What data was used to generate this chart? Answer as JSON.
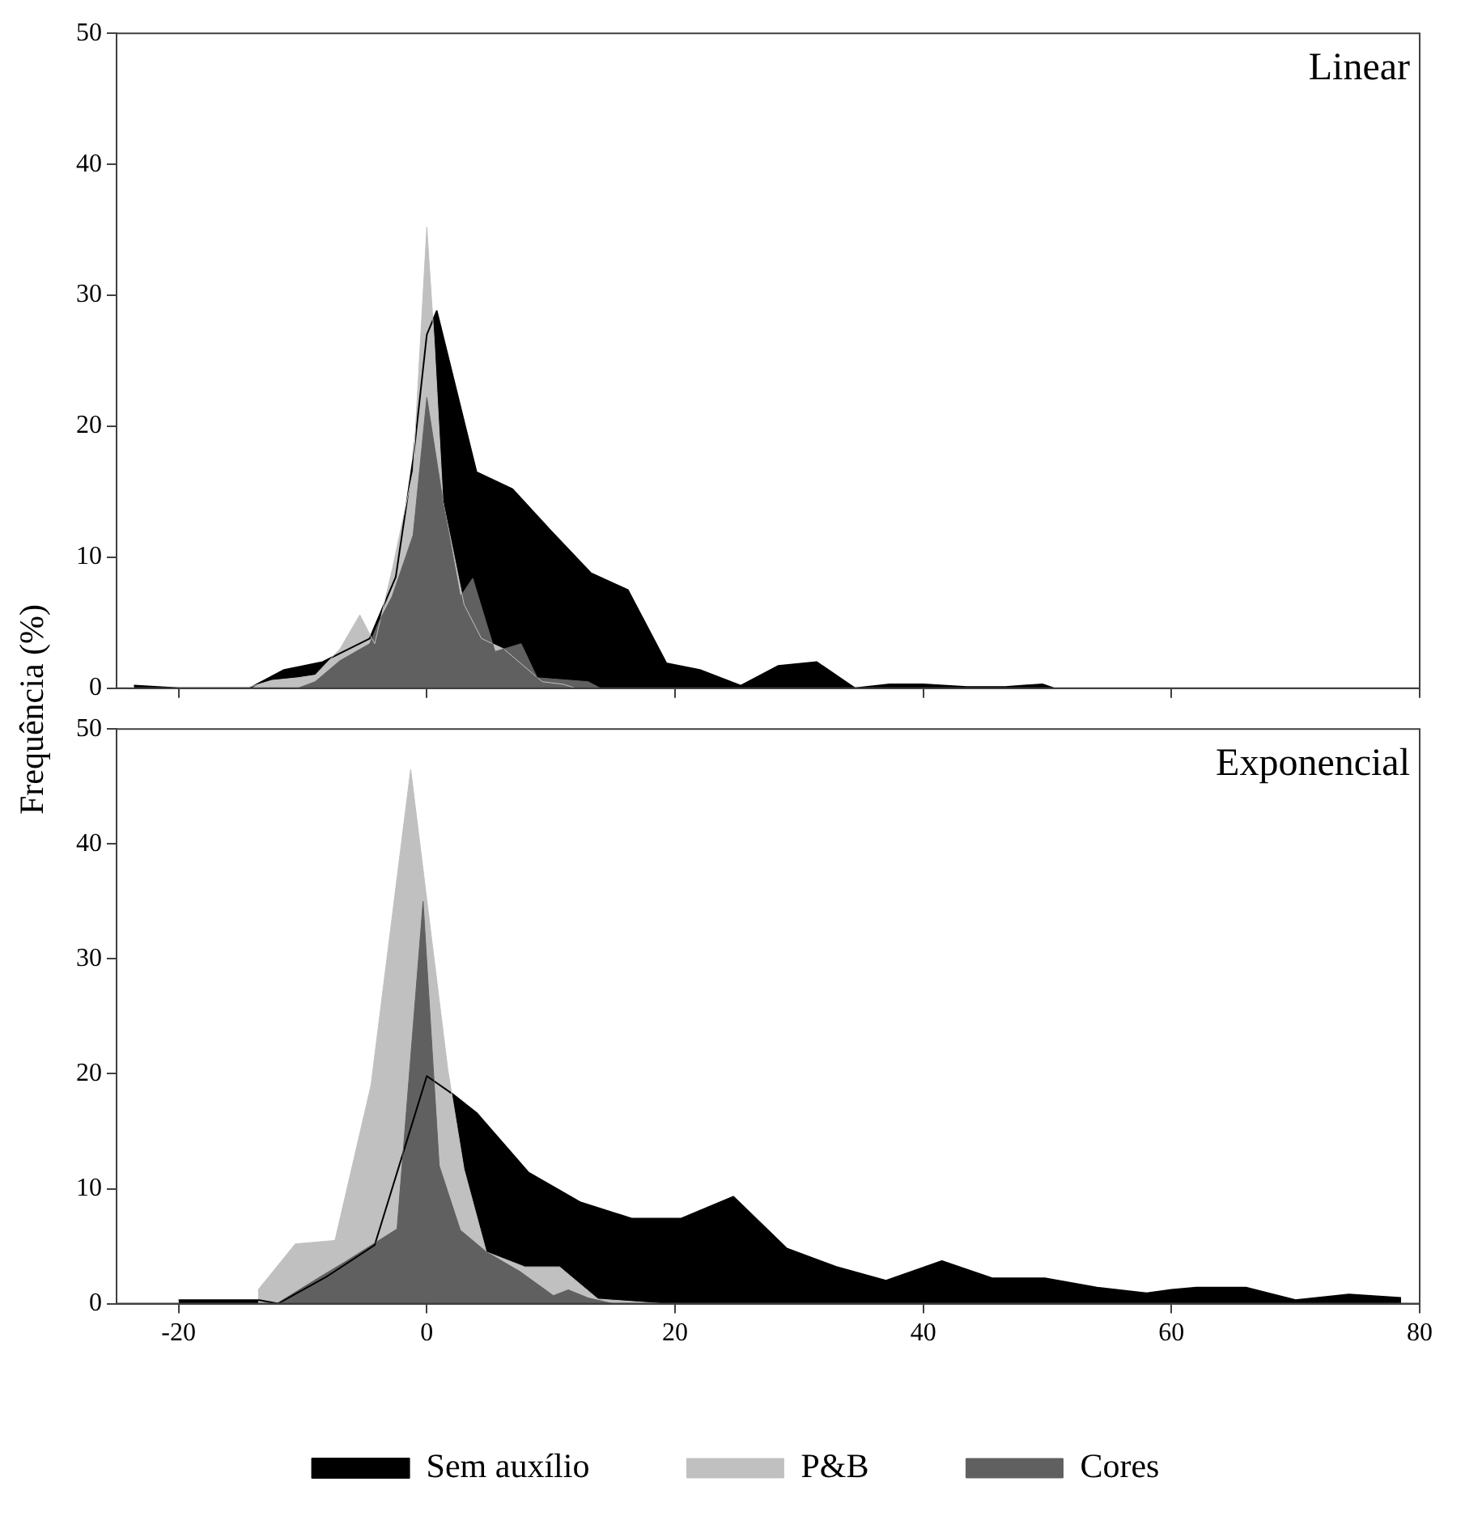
{
  "chart_data": [
    {
      "type": "area",
      "title": "Linear",
      "ylabel": "Frequência (%)",
      "xlim": [
        -25,
        80
      ],
      "xticks": [
        -20,
        0,
        20,
        40,
        60,
        80
      ],
      "ylim": [
        0,
        50
      ],
      "yticks": [
        0,
        10,
        20,
        30,
        40,
        50
      ],
      "tick_labels": "y",
      "grid": false,
      "legend": false,
      "series": [
        {
          "color": "#000000",
          "x": [
            -23.6,
            -20,
            -15.3,
            -14.3,
            -11.5,
            -8.4,
            -4.6,
            -2.5,
            -1.1,
            0,
            0.8,
            4,
            6.9,
            10,
            13.2,
            16.2,
            19.3,
            22,
            25.3,
            28.3,
            31.4,
            34.5,
            37.3,
            40,
            43.5,
            46.6,
            49.6,
            50.5
          ],
          "values": [
            0.2,
            0,
            0,
            0,
            1.4,
            2.0,
            3.8,
            8.5,
            17.5,
            27,
            28.8,
            16.5,
            15.2,
            12,
            8.8,
            7.5,
            1.9,
            1.4,
            0.2,
            1.7,
            2.0,
            0,
            0.3,
            0.3,
            0.1,
            0.1,
            0.3,
            0
          ]
        },
        {
          "color": "#c0c0c0",
          "x": [
            -14.6,
            -12.5,
            -10.4,
            -9,
            -7,
            -5.4,
            -4.2,
            -2.8,
            -1.1,
            0,
            0.6,
            1.3,
            3,
            4.4,
            6.2,
            9.3,
            11,
            12
          ],
          "values": [
            0,
            0.6,
            0.8,
            1,
            3.0,
            5.6,
            3.4,
            9,
            16.6,
            35.2,
            26.5,
            14.3,
            6.4,
            3.8,
            3.0,
            0.5,
            0.3,
            0
          ]
        },
        {
          "color": "#606060",
          "x": [
            -10.4,
            -9,
            -7,
            -4.6,
            -3.9,
            -2.8,
            -1.1,
            0,
            1.3,
            2.7,
            3.7,
            5.5,
            7.6,
            8.9,
            13,
            14
          ],
          "values": [
            0,
            0.5,
            2.1,
            3.4,
            5,
            7,
            11.7,
            22.2,
            14.3,
            7,
            8.4,
            2.8,
            3.4,
            0.8,
            0.5,
            0
          ]
        }
      ]
    },
    {
      "type": "area",
      "title": "Exponencial",
      "xlim": [
        -25,
        80
      ],
      "xticks": [
        -20,
        0,
        20,
        40,
        60,
        80
      ],
      "ylim": [
        0,
        50
      ],
      "yticks": [
        0,
        10,
        20,
        30,
        40,
        50
      ],
      "grid": false,
      "legend": "bottom",
      "series": [
        {
          "name": "Sem auxílio",
          "color": "#000000",
          "x": [
            -20,
            -13.5,
            -12,
            -8,
            -4.2,
            0,
            2,
            4,
            8.2,
            12.4,
            16.5,
            20.5,
            24.7,
            29,
            33,
            37,
            41.5,
            45.6,
            49.8,
            54,
            58,
            60,
            62,
            66,
            70,
            74.3,
            78.5
          ],
          "values": [
            0.3,
            0.3,
            0,
            2.4,
            5.1,
            19.8,
            18.3,
            16.6,
            11.4,
            8.8,
            7.4,
            7.4,
            9.3,
            4.8,
            3.2,
            2.0,
            3.7,
            2.2,
            2.2,
            1.4,
            0.9,
            1.2,
            1.4,
            1.4,
            0.3,
            0.8,
            0.5
          ]
        },
        {
          "name": "P&B",
          "color": "#c0c0c0",
          "x": [
            -13.6,
            -10.6,
            -7.4,
            -4.5,
            -1.3,
            1.7,
            3,
            4.8,
            7.9,
            10.7,
            13.8,
            19
          ],
          "values": [
            1.2,
            5.2,
            5.5,
            19,
            46.5,
            20.3,
            11.7,
            4.5,
            3.2,
            3.2,
            0.4,
            0
          ]
        },
        {
          "name": "Cores",
          "color": "#606060",
          "x": [
            -12.1,
            -8.5,
            -6.5,
            -2.4,
            -0.3,
            1,
            2.7,
            4.8,
            7.5,
            10.2,
            11.4,
            13,
            15
          ],
          "values": [
            0,
            2.4,
            3.7,
            6.5,
            35,
            12,
            6.4,
            4.5,
            2.8,
            0.7,
            1.2,
            0.5,
            0
          ]
        }
      ]
    }
  ]
}
